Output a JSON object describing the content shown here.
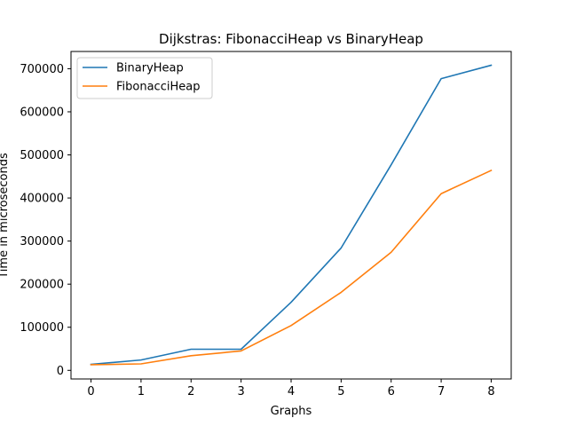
{
  "chart_data": {
    "type": "line",
    "title": "Dijkstras: FibonacciHeap vs BinaryHeap",
    "xlabel": "Graphs",
    "ylabel": "Time in microseconds",
    "x": [
      0,
      1,
      2,
      3,
      4,
      5,
      6,
      7,
      8
    ],
    "xlim": [
      -0.4,
      8.4
    ],
    "ylim": [
      -20000,
      740000
    ],
    "xticks": [
      0,
      1,
      2,
      3,
      4,
      5,
      6,
      7,
      8
    ],
    "xtick_labels": [
      "0",
      "1",
      "2",
      "3",
      "4",
      "5",
      "6",
      "7",
      "8"
    ],
    "yticks": [
      0,
      100000,
      200000,
      300000,
      400000,
      500000,
      600000,
      700000
    ],
    "ytick_labels": [
      "0",
      "100000",
      "200000",
      "300000",
      "400000",
      "500000",
      "600000",
      "700000"
    ],
    "grid": false,
    "legend_position": "upper-left",
    "series": [
      {
        "name": "BinaryHeap",
        "color": "#1f77b4",
        "values": [
          14000,
          24000,
          49000,
          49000,
          158000,
          284000,
          477000,
          677000,
          708000
        ]
      },
      {
        "name": "FibonacciHeap",
        "color": "#ff7f0e",
        "values": [
          13000,
          15000,
          34000,
          45000,
          104000,
          181000,
          274000,
          410000,
          464000
        ]
      }
    ]
  }
}
